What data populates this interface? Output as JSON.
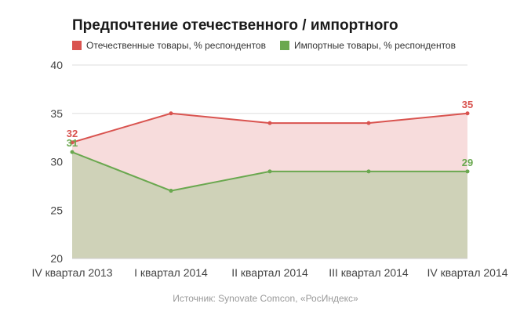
{
  "chart_data": {
    "type": "area",
    "title": "Предпочтение отечественного / импортного",
    "categories": [
      "IV квартал 2013",
      "I квартал 2014",
      "II квартал 2014",
      "III квартал 2014",
      "IV квартал 2014"
    ],
    "series": [
      {
        "name": "Отечественные товары, % респондентов",
        "values": [
          32,
          35,
          34,
          34,
          35
        ],
        "color": "#d9534f",
        "fill": "#f7dcdc",
        "labels": [
          "32",
          "",
          "",
          "",
          "35"
        ]
      },
      {
        "name": "Импортные товары, % респондентов",
        "values": [
          31,
          27,
          29,
          29,
          29
        ],
        "color": "#6aa84f",
        "fill": "#cfd2b8",
        "labels": [
          "31",
          "",
          "",
          "",
          "29"
        ]
      }
    ],
    "ylim": [
      20,
      40
    ],
    "yticks": [
      "20",
      "25",
      "30",
      "35",
      "40"
    ],
    "grid": true,
    "legend_position": "top-left"
  },
  "source": "Источник: Synovate Comcon, «РосИндекс»"
}
